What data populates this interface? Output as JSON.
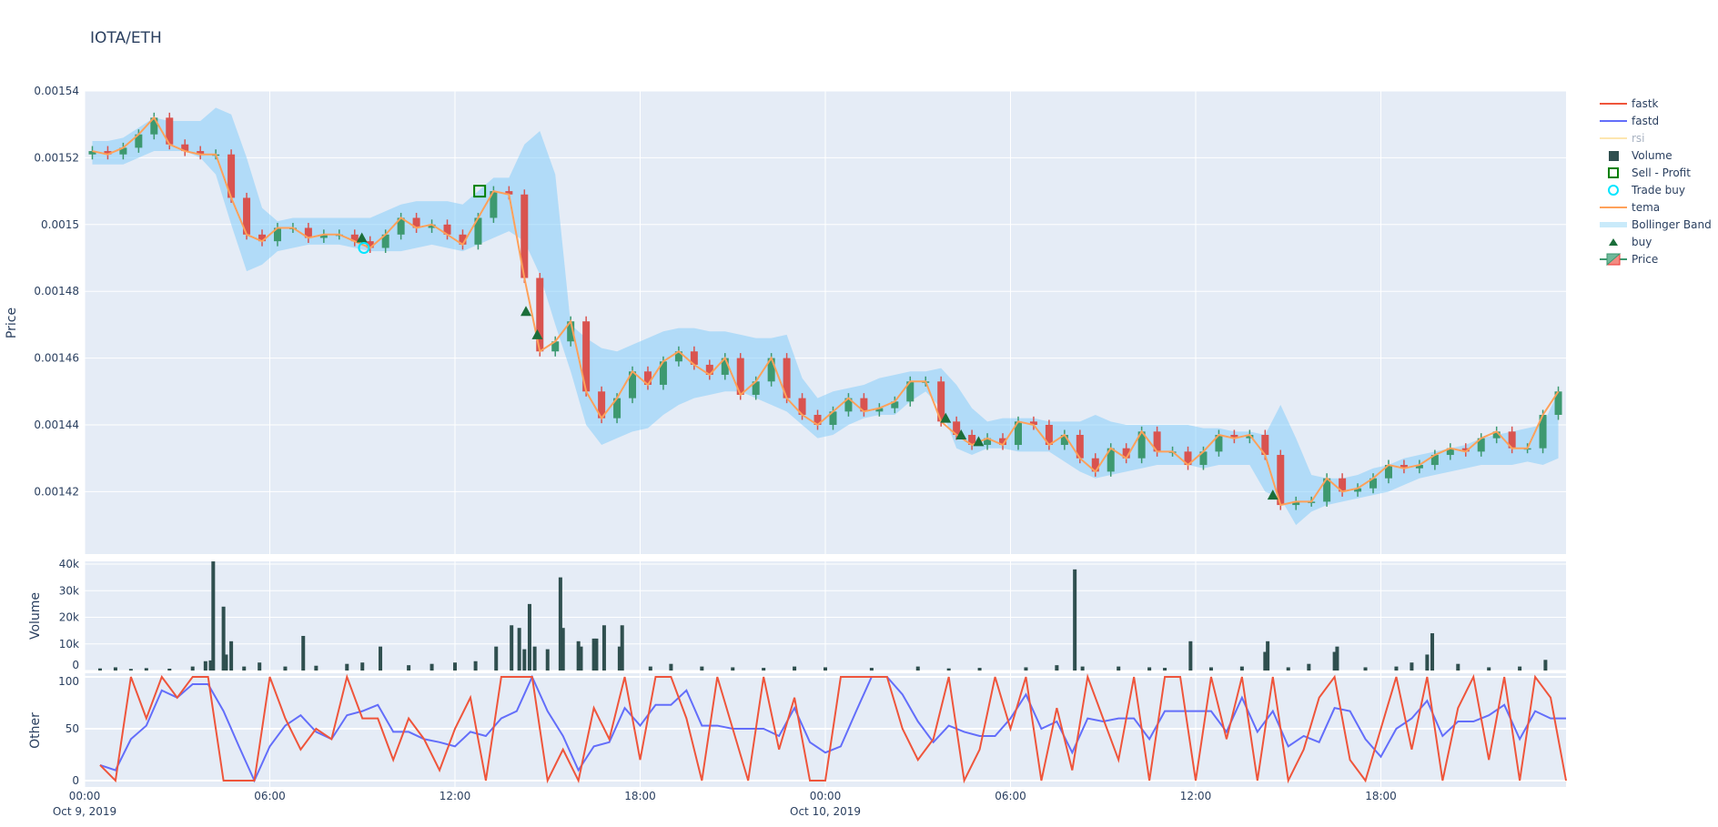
{
  "title": "IOTA/ETH",
  "legend": [
    {
      "label": "fastk",
      "kind": "line",
      "color": "#ef553b"
    },
    {
      "label": "fastd",
      "kind": "line",
      "color": "#636efa"
    },
    {
      "label": "rsi",
      "kind": "line",
      "color": "#fde6b0",
      "hidden": true
    },
    {
      "label": "Volume",
      "kind": "square",
      "color": "#2f4f4f"
    },
    {
      "label": "Sell - Profit",
      "kind": "open-square",
      "color": "#008000"
    },
    {
      "label": "Trade buy",
      "kind": "open-circle",
      "color": "#00e5ff"
    },
    {
      "label": "tema",
      "kind": "line",
      "color": "#ffa15a"
    },
    {
      "label": "Bollinger Band",
      "kind": "band",
      "color": "#c9eafa"
    },
    {
      "label": "buy",
      "kind": "triangle",
      "color": "#1b6e3a"
    },
    {
      "label": "Price",
      "kind": "candle",
      "color": "#3d9970"
    }
  ],
  "chart_data": [
    {
      "type": "candlestick",
      "ylabel": "Price",
      "ylim": [
        0.001401,
        0.00154
      ],
      "yticks": [
        "0.00142",
        "0.00144",
        "0.00146",
        "0.00148",
        "0.0015",
        "0.00152",
        "0.00154"
      ],
      "xlim": [
        "2019-10-09 00:00",
        "2019-10-10 23:55"
      ],
      "grid": true,
      "series_start": "2019-10-09 00:00",
      "series_step_minutes": 30,
      "colors": {
        "increasing": "#3d9970",
        "decreasing": "#d9534f",
        "tema": "#ffa15a",
        "band": "rgba(135,206,250,0.55)"
      },
      "tema": [
        0.001522,
        0.001521,
        0.001523,
        0.001527,
        0.001532,
        0.001524,
        0.001522,
        0.001521,
        0.001521,
        0.001508,
        0.001497,
        0.001495,
        0.001499,
        0.001499,
        0.001496,
        0.001497,
        0.001497,
        0.001495,
        0.001493,
        0.001497,
        0.001502,
        0.001499,
        0.0015,
        0.001497,
        0.001494,
        0.001502,
        0.00151,
        0.001509,
        0.001484,
        0.001462,
        0.001465,
        0.001471,
        0.00145,
        0.001442,
        0.001448,
        0.001456,
        0.001452,
        0.001459,
        0.001462,
        0.001458,
        0.001455,
        0.00146,
        0.001449,
        0.001453,
        0.00146,
        0.001448,
        0.001443,
        0.00144,
        0.001444,
        0.001448,
        0.001444,
        0.001445,
        0.001447,
        0.001453,
        0.001453,
        0.001441,
        0.001437,
        0.001434,
        0.001436,
        0.001434,
        0.001441,
        0.00144,
        0.001434,
        0.001437,
        0.00143,
        0.001426,
        0.001433,
        0.00143,
        0.001438,
        0.001432,
        0.001432,
        0.001428,
        0.001432,
        0.001437,
        0.001436,
        0.001437,
        0.001431,
        0.001416,
        0.001417,
        0.001417,
        0.001424,
        0.00142,
        0.001421,
        0.001424,
        0.001428,
        0.001427,
        0.001428,
        0.001431,
        0.001433,
        0.001432,
        0.001436,
        0.001438,
        0.001433,
        0.001433,
        0.001443,
        0.00145
      ],
      "bb_upper": [
        0.001525,
        0.001525,
        0.001526,
        0.001529,
        0.001532,
        0.001531,
        0.001531,
        0.001531,
        0.001535,
        0.001533,
        0.00152,
        0.001505,
        0.001501,
        0.001502,
        0.001502,
        0.001502,
        0.001502,
        0.001502,
        0.001502,
        0.001504,
        0.001506,
        0.001507,
        0.001507,
        0.001507,
        0.001506,
        0.00151,
        0.001514,
        0.001514,
        0.001524,
        0.001528,
        0.001515,
        0.00147,
        0.001466,
        0.001463,
        0.001462,
        0.001464,
        0.001466,
        0.001468,
        0.001469,
        0.001469,
        0.001468,
        0.001468,
        0.001467,
        0.001466,
        0.001466,
        0.001467,
        0.001454,
        0.001448,
        0.00145,
        0.001451,
        0.001452,
        0.001454,
        0.001455,
        0.001456,
        0.001456,
        0.001457,
        0.001452,
        0.001445,
        0.001441,
        0.001442,
        0.001442,
        0.001442,
        0.001441,
        0.001441,
        0.001441,
        0.001443,
        0.001441,
        0.00144,
        0.00144,
        0.00144,
        0.00144,
        0.00144,
        0.001439,
        0.001439,
        0.001438,
        0.001438,
        0.001437,
        0.001446,
        0.001436,
        0.001425,
        0.001424,
        0.001424,
        0.001425,
        0.001427,
        0.001428,
        0.00143,
        0.001431,
        0.001432,
        0.001433,
        0.001434,
        0.001436,
        0.001437,
        0.001438,
        0.001439,
        0.00144,
        0.00145
      ],
      "bb_lower": [
        0.001518,
        0.001518,
        0.001518,
        0.00152,
        0.001522,
        0.001522,
        0.001522,
        0.00152,
        0.001515,
        0.0015,
        0.001486,
        0.001488,
        0.001492,
        0.001493,
        0.001494,
        0.001494,
        0.001494,
        0.001493,
        0.001492,
        0.001492,
        0.001492,
        0.001493,
        0.001494,
        0.001493,
        0.001492,
        0.001494,
        0.001496,
        0.001498,
        0.001495,
        0.001485,
        0.00147,
        0.001456,
        0.00144,
        0.001434,
        0.001436,
        0.001438,
        0.001439,
        0.001443,
        0.001446,
        0.001448,
        0.001449,
        0.00145,
        0.00145,
        0.001448,
        0.001446,
        0.001444,
        0.00144,
        0.001436,
        0.001437,
        0.00144,
        0.001442,
        0.001443,
        0.001443,
        0.001447,
        0.00145,
        0.001445,
        0.001433,
        0.001431,
        0.001433,
        0.001433,
        0.001432,
        0.001432,
        0.001432,
        0.001429,
        0.001426,
        0.001424,
        0.001425,
        0.001426,
        0.001427,
        0.001428,
        0.001428,
        0.001428,
        0.001427,
        0.001428,
        0.001428,
        0.001428,
        0.00142,
        0.001418,
        0.00141,
        0.001414,
        0.001416,
        0.001417,
        0.001418,
        0.001419,
        0.00142,
        0.001422,
        0.001424,
        0.001425,
        0.001426,
        0.001427,
        0.001428,
        0.001428,
        0.001428,
        0.001429,
        0.001428,
        0.00143
      ],
      "buy": [
        [
          "2019-10-09 08:59",
          0.001496
        ],
        [
          "2019-10-09 14:18",
          0.001474
        ],
        [
          "2019-10-09 14:40",
          0.001467
        ],
        [
          "2019-10-10 03:54",
          0.001442
        ],
        [
          "2019-10-10 04:24",
          0.001437
        ],
        [
          "2019-10-10 04:58",
          0.001435
        ],
        [
          "2019-10-10 14:30",
          0.001419
        ]
      ],
      "trade_buy": [
        [
          "2019-10-09 09:03",
          0.001493
        ]
      ],
      "sell_profit": [
        [
          "2019-10-09 12:48",
          0.00151
        ]
      ]
    },
    {
      "type": "bar",
      "ylabel": "Volume",
      "ylim": [
        0,
        41000
      ],
      "yticks": [
        "0",
        "10k",
        "20k",
        "30k",
        "40k"
      ],
      "color": "#2f4f4f",
      "values": [
        [
          "2019-10-09 00:30",
          800
        ],
        [
          "2019-10-09 01:00",
          1200
        ],
        [
          "2019-10-09 01:30",
          600
        ],
        [
          "2019-10-09 02:00",
          900
        ],
        [
          "2019-10-09 02:45",
          700
        ],
        [
          "2019-10-09 03:30",
          1500
        ],
        [
          "2019-10-09 03:55",
          3500
        ],
        [
          "2019-10-09 04:05",
          3800
        ],
        [
          "2019-10-09 04:10",
          41000
        ],
        [
          "2019-10-09 04:30",
          24000
        ],
        [
          "2019-10-09 04:35",
          6000
        ],
        [
          "2019-10-09 04:45",
          11000
        ],
        [
          "2019-10-09 05:10",
          1500
        ],
        [
          "2019-10-09 05:40",
          3000
        ],
        [
          "2019-10-09 06:30",
          1500
        ],
        [
          "2019-10-09 07:05",
          13000
        ],
        [
          "2019-10-09 07:30",
          1800
        ],
        [
          "2019-10-09 08:30",
          2500
        ],
        [
          "2019-10-09 09:00",
          3000
        ],
        [
          "2019-10-09 09:35",
          9000
        ],
        [
          "2019-10-09 10:30",
          2000
        ],
        [
          "2019-10-09 11:15",
          2500
        ],
        [
          "2019-10-09 12:00",
          3000
        ],
        [
          "2019-10-09 12:40",
          3500
        ],
        [
          "2019-10-09 13:20",
          9000
        ],
        [
          "2019-10-09 13:50",
          17000
        ],
        [
          "2019-10-09 14:05",
          16000
        ],
        [
          "2019-10-09 14:15",
          8000
        ],
        [
          "2019-10-09 14:25",
          25000
        ],
        [
          "2019-10-09 14:35",
          9000
        ],
        [
          "2019-10-09 15:00",
          8000
        ],
        [
          "2019-10-09 15:25",
          35000
        ],
        [
          "2019-10-09 15:30",
          16000
        ],
        [
          "2019-10-09 16:00",
          11000
        ],
        [
          "2019-10-09 16:05",
          9000
        ],
        [
          "2019-10-09 16:30",
          12000
        ],
        [
          "2019-10-09 16:35",
          12000
        ],
        [
          "2019-10-09 16:50",
          17000
        ],
        [
          "2019-10-09 17:20",
          9000
        ],
        [
          "2019-10-09 17:25",
          17000
        ],
        [
          "2019-10-09 18:20",
          1500
        ],
        [
          "2019-10-09 19:00",
          2500
        ],
        [
          "2019-10-09 20:00",
          1500
        ],
        [
          "2019-10-09 21:00",
          1200
        ],
        [
          "2019-10-09 22:00",
          1000
        ],
        [
          "2019-10-09 23:00",
          1500
        ],
        [
          "2019-10-10 00:00",
          1200
        ],
        [
          "2019-10-10 01:30",
          1000
        ],
        [
          "2019-10-10 03:00",
          1500
        ],
        [
          "2019-10-10 04:00",
          800
        ],
        [
          "2019-10-10 05:00",
          1000
        ],
        [
          "2019-10-10 06:30",
          1200
        ],
        [
          "2019-10-10 07:30",
          2000
        ],
        [
          "2019-10-10 08:05",
          38000
        ],
        [
          "2019-10-10 08:20",
          1500
        ],
        [
          "2019-10-10 09:30",
          1500
        ],
        [
          "2019-10-10 10:30",
          1200
        ],
        [
          "2019-10-10 11:00",
          1000
        ],
        [
          "2019-10-10 11:50",
          11000
        ],
        [
          "2019-10-10 12:30",
          1200
        ],
        [
          "2019-10-10 13:30",
          1500
        ],
        [
          "2019-10-10 14:15",
          7000
        ],
        [
          "2019-10-10 14:20",
          11000
        ],
        [
          "2019-10-10 15:00",
          1200
        ],
        [
          "2019-10-10 15:40",
          2500
        ],
        [
          "2019-10-10 16:30",
          7000
        ],
        [
          "2019-10-10 16:35",
          9000
        ],
        [
          "2019-10-10 17:30",
          1200
        ],
        [
          "2019-10-10 18:30",
          1500
        ],
        [
          "2019-10-10 19:00",
          3000
        ],
        [
          "2019-10-10 19:30",
          6000
        ],
        [
          "2019-10-10 19:40",
          14000
        ],
        [
          "2019-10-10 20:30",
          2500
        ],
        [
          "2019-10-10 21:30",
          1200
        ],
        [
          "2019-10-10 22:30",
          1500
        ],
        [
          "2019-10-10 23:20",
          4000
        ]
      ]
    },
    {
      "type": "line",
      "ylabel": "Other",
      "ylim": [
        -5,
        100
      ],
      "yticks": [
        "0",
        "50",
        "100"
      ],
      "xticks": [
        {
          "label": "00:00",
          "date": "Oct 9, 2019"
        },
        {
          "label": "06:00"
        },
        {
          "label": "12:00"
        },
        {
          "label": "18:00"
        },
        {
          "label": "00:00",
          "date": "Oct 10, 2019"
        },
        {
          "label": "06:00"
        },
        {
          "label": "12:00"
        },
        {
          "label": "18:00"
        }
      ],
      "series_start": "2019-10-09 00:30",
      "series_step_minutes": 30,
      "series": [
        {
          "name": "fastk",
          "color": "#ef553b",
          "values": [
            15,
            0,
            100,
            60,
            100,
            80,
            100,
            100,
            0,
            0,
            0,
            100,
            60,
            30,
            50,
            40,
            100,
            60,
            60,
            20,
            60,
            40,
            10,
            50,
            80,
            0,
            100,
            100,
            100,
            0,
            30,
            0,
            70,
            40,
            100,
            20,
            100,
            100,
            60,
            0,
            100,
            50,
            0,
            100,
            30,
            80,
            0,
            0,
            100,
            100,
            100,
            100,
            50,
            20,
            40,
            100,
            0,
            30,
            100,
            50,
            100,
            0,
            70,
            10,
            100,
            60,
            20,
            100,
            0,
            100,
            100,
            0,
            100,
            40,
            100,
            0,
            100,
            0,
            30,
            80,
            100,
            20,
            0,
            50,
            100,
            30,
            100,
            0,
            70,
            100,
            20,
            100,
            0,
            100,
            80,
            0
          ]
        },
        {
          "name": "fastd",
          "color": "#636efa",
          "values": [
            15,
            10,
            40,
            53,
            87,
            80,
            93,
            93,
            67,
            33,
            0,
            33,
            53,
            63,
            47,
            40,
            63,
            67,
            73,
            47,
            47,
            40,
            37,
            33,
            47,
            43,
            60,
            67,
            100,
            67,
            43,
            10,
            33,
            37,
            70,
            53,
            73,
            73,
            87,
            53,
            53,
            50,
            50,
            50,
            43,
            70,
            37,
            27,
            33,
            67,
            100,
            100,
            83,
            57,
            37,
            53,
            47,
            43,
            43,
            60,
            83,
            50,
            57,
            27,
            60,
            57,
            60,
            60,
            40,
            67,
            67,
            67,
            67,
            47,
            80,
            47,
            67,
            33,
            43,
            37,
            70,
            67,
            40,
            23,
            50,
            60,
            77,
            43,
            57,
            57,
            63,
            73,
            40,
            67,
            60,
            60
          ]
        }
      ]
    }
  ]
}
